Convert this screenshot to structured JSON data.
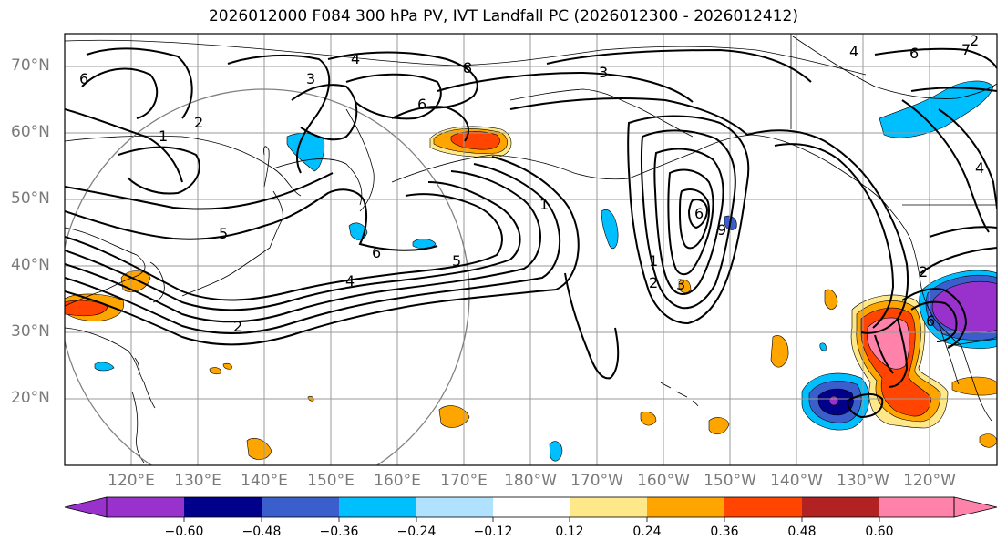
{
  "title": "2026012000 F084 300 hPa PV, IVT Landfall PC (2026012300 - 2026012412)",
  "lat_labels": [
    "70°N",
    "60°N",
    "50°N",
    "40°N",
    "30°N",
    "20°N"
  ],
  "lon_labels": [
    "120°E",
    "130°E",
    "140°E",
    "150°E",
    "160°E",
    "170°E",
    "180°W",
    "170°W",
    "160°W",
    "150°W",
    "140°W",
    "130°W",
    "120°W"
  ],
  "colorbar": {
    "ticks": [
      "−0.60",
      "−0.48",
      "−0.36",
      "−0.24",
      "−0.12",
      "0.12",
      "0.24",
      "0.36",
      "0.48",
      "0.60"
    ],
    "colors": [
      "#9932cc",
      "#00008b",
      "#3a5fcd",
      "#00bfff",
      "#b0e2ff",
      "#ffffff",
      "#ffe88a",
      "#ffa500",
      "#ff4500",
      "#b22222",
      "#ff82ab"
    ]
  },
  "contour_labels": [
    "3",
    "4",
    "6",
    "8",
    "1",
    "2",
    "5",
    "6",
    "5",
    "4",
    "2",
    "6",
    "1",
    "3",
    "6",
    "1",
    "2",
    "9",
    "3",
    "2",
    "4",
    "6",
    "4",
    "6",
    "7",
    "2"
  ]
}
